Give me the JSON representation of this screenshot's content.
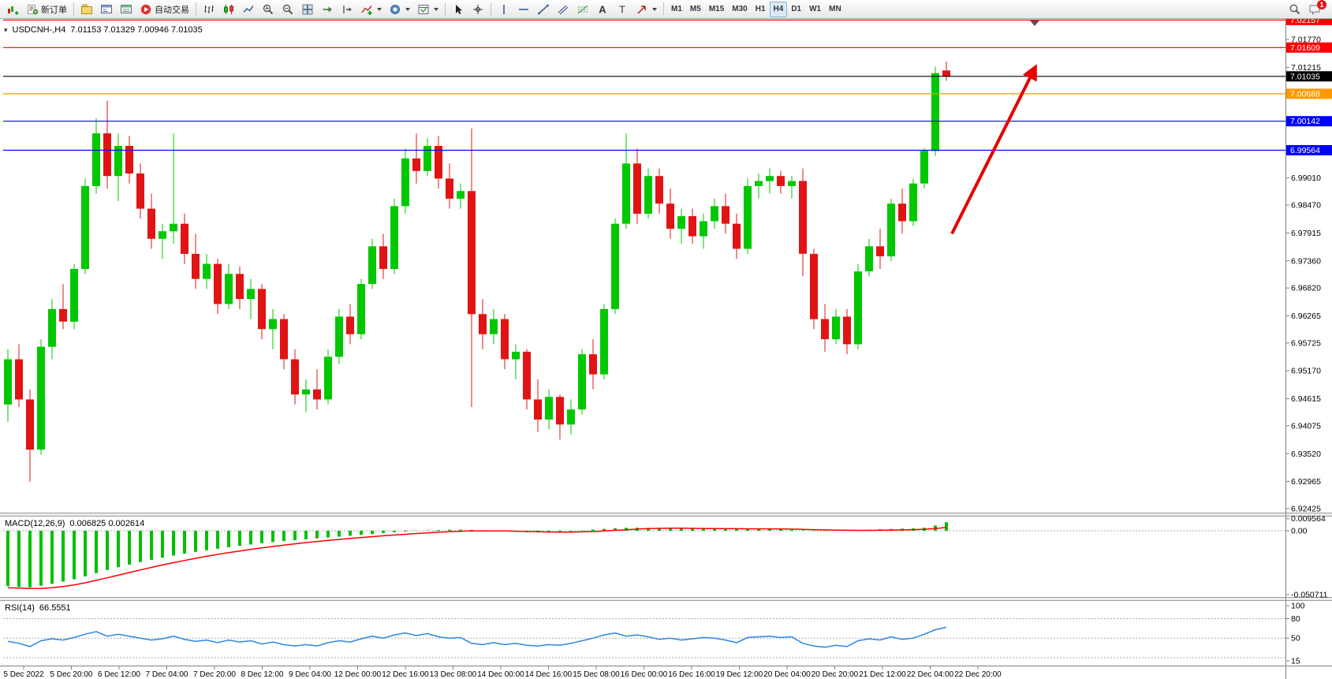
{
  "toolbar": {
    "new_order_label": "新订单",
    "autotrading_label": "自动交易",
    "timeframes": [
      "M1",
      "M5",
      "M15",
      "M30",
      "H1",
      "H4",
      "D1",
      "W1",
      "MN"
    ],
    "active_timeframe": "H4",
    "notification_badge": "1"
  },
  "chart": {
    "symbol_label": "USDCNH-,H4",
    "ohlc_label": "7.01153 7.01329 7.00946 7.01035"
  },
  "chart_data": {
    "type": "candlestick",
    "symbol": "USDCNH-",
    "timeframe": "H4",
    "current_ohlc": {
      "open": 7.01153,
      "high": 7.01329,
      "low": 7.00946,
      "close": 7.01035
    },
    "colors": {
      "up": "#00C800",
      "down": "#E01414"
    },
    "candles": [
      [
        6.945,
        6.956,
        6.9415,
        6.954
      ],
      [
        6.954,
        6.957,
        6.9445,
        6.946
      ],
      [
        6.946,
        6.948,
        6.9296,
        6.936
      ],
      [
        6.936,
        6.958,
        6.935,
        6.9565
      ],
      [
        6.9565,
        6.966,
        6.954,
        6.964
      ],
      [
        6.964,
        6.969,
        6.96,
        6.9615
      ],
      [
        6.9615,
        6.973,
        6.96,
        6.972
      ],
      [
        6.972,
        6.99,
        6.971,
        6.9885
      ],
      [
        6.9885,
        7.002,
        6.987,
        6.999
      ],
      [
        6.999,
        7.0055,
        6.988,
        6.9905
      ],
      [
        6.9905,
        6.999,
        6.9855,
        6.9965
      ],
      [
        6.9965,
        6.9985,
        6.989,
        6.991
      ],
      [
        6.991,
        6.993,
        6.982,
        6.984
      ],
      [
        6.984,
        6.987,
        6.976,
        6.978
      ],
      [
        6.978,
        6.981,
        6.974,
        6.9795
      ],
      [
        6.9795,
        6.999,
        6.977,
        6.981
      ],
      [
        6.981,
        6.983,
        6.973,
        6.975
      ],
      [
        6.975,
        6.979,
        6.968,
        6.97
      ],
      [
        6.97,
        6.975,
        6.968,
        6.973
      ],
      [
        6.973,
        6.974,
        6.963,
        6.965
      ],
      [
        6.965,
        6.973,
        6.964,
        6.971
      ],
      [
        6.971,
        6.9725,
        6.964,
        6.966
      ],
      [
        6.966,
        6.97,
        6.962,
        6.968
      ],
      [
        6.968,
        6.969,
        6.958,
        6.96
      ],
      [
        6.96,
        6.964,
        6.956,
        6.962
      ],
      [
        6.962,
        6.963,
        6.952,
        6.954
      ],
      [
        6.954,
        6.956,
        6.945,
        6.947
      ],
      [
        6.947,
        6.95,
        6.9435,
        6.948
      ],
      [
        6.948,
        6.952,
        6.944,
        6.946
      ],
      [
        6.946,
        6.956,
        6.945,
        6.9545
      ],
      [
        6.9545,
        6.964,
        6.953,
        6.9625
      ],
      [
        6.9625,
        6.965,
        6.957,
        6.959
      ],
      [
        6.959,
        6.97,
        6.958,
        6.969
      ],
      [
        6.969,
        6.978,
        6.968,
        6.9765
      ],
      [
        6.9765,
        6.979,
        6.97,
        6.972
      ],
      [
        6.972,
        6.986,
        6.971,
        6.9845
      ],
      [
        6.9845,
        6.996,
        6.983,
        6.994
      ],
      [
        6.994,
        6.999,
        6.989,
        6.9915
      ],
      [
        6.9915,
        6.998,
        6.9905,
        6.9965
      ],
      [
        6.9965,
        6.9985,
        6.988,
        6.99
      ],
      [
        6.99,
        6.993,
        6.984,
        6.986
      ],
      [
        6.986,
        6.989,
        6.984,
        6.9875
      ],
      [
        6.9875,
        7.0,
        6.9445,
        6.963
      ],
      [
        6.963,
        6.966,
        6.956,
        6.959
      ],
      [
        6.959,
        6.964,
        6.957,
        6.962
      ],
      [
        6.962,
        6.963,
        6.952,
        6.954
      ],
      [
        6.954,
        6.957,
        6.95,
        6.9555
      ],
      [
        6.9555,
        6.956,
        6.944,
        6.946
      ],
      [
        6.946,
        6.95,
        6.9395,
        6.942
      ],
      [
        6.942,
        6.948,
        6.94,
        6.9465
      ],
      [
        6.9465,
        6.947,
        6.938,
        6.941
      ],
      [
        6.941,
        6.946,
        6.939,
        6.944
      ],
      [
        6.944,
        6.956,
        6.943,
        6.955
      ],
      [
        6.955,
        6.958,
        6.948,
        6.951
      ],
      [
        6.951,
        6.965,
        6.95,
        6.964
      ],
      [
        6.964,
        6.982,
        6.963,
        6.981
      ],
      [
        6.981,
        6.999,
        6.98,
        6.993
      ],
      [
        6.993,
        6.996,
        6.981,
        6.983
      ],
      [
        6.983,
        6.992,
        6.982,
        6.9905
      ],
      [
        6.9905,
        6.992,
        6.983,
        6.985
      ],
      [
        6.985,
        6.988,
        6.978,
        6.98
      ],
      [
        6.98,
        6.984,
        6.977,
        6.9825
      ],
      [
        6.9825,
        6.984,
        6.977,
        6.9785
      ],
      [
        6.9785,
        6.983,
        6.976,
        6.9815
      ],
      [
        6.9815,
        6.986,
        6.98,
        6.9845
      ],
      [
        6.9845,
        6.987,
        6.979,
        6.981
      ],
      [
        6.981,
        6.983,
        6.974,
        6.976
      ],
      [
        6.976,
        6.99,
        6.975,
        6.9885
      ],
      [
        6.9885,
        6.991,
        6.986,
        6.9895
      ],
      [
        6.9895,
        6.992,
        6.987,
        6.9905
      ],
      [
        6.9905,
        6.9915,
        6.987,
        6.9885
      ],
      [
        6.9885,
        6.9905,
        6.986,
        6.9895
      ],
      [
        6.9895,
        6.992,
        6.9705,
        6.975
      ],
      [
        6.975,
        6.976,
        6.96,
        6.962
      ],
      [
        6.962,
        6.965,
        6.9555,
        6.958
      ],
      [
        6.958,
        6.964,
        6.957,
        6.9625
      ],
      [
        6.9625,
        6.964,
        6.955,
        6.957
      ],
      [
        6.957,
        6.973,
        6.956,
        6.9715
      ],
      [
        6.9715,
        6.978,
        6.9705,
        6.9765
      ],
      [
        6.9765,
        6.98,
        6.972,
        6.9745
      ],
      [
        6.9745,
        6.986,
        6.9735,
        6.985
      ],
      [
        6.985,
        6.988,
        6.979,
        6.9815
      ],
      [
        6.9815,
        6.99,
        6.9805,
        6.989
      ],
      [
        6.989,
        6.996,
        6.988,
        6.9955
      ],
      [
        6.9955,
        7.0123,
        6.9945,
        7.011
      ],
      [
        7.01153,
        7.01329,
        7.00946,
        7.01035
      ]
    ],
    "hlines": [
      {
        "price": 7.02157,
        "color": "#FF0000",
        "label": "7.02157",
        "current": false
      },
      {
        "price": 7.01609,
        "color": "#FF0000",
        "label": "7.01609",
        "current": false
      },
      {
        "price": 7.01035,
        "color": "#000000",
        "label": "7.01035",
        "current": true
      },
      {
        "price": 7.00688,
        "color": "#FF9900",
        "label": "7.00688",
        "current": false
      },
      {
        "price": 7.00142,
        "color": "#0000FF",
        "label": "7.00142",
        "current": false
      },
      {
        "price": 6.99564,
        "color": "#0000FF",
        "label": "6.99564",
        "current": false
      }
    ],
    "y_labels": [
      "7.01770",
      "7.01215",
      "6.99010",
      "6.98470",
      "6.97915",
      "6.97360",
      "6.96820",
      "6.96265",
      "6.95725",
      "6.95170",
      "6.94615",
      "6.94075",
      "6.93520",
      "6.92965",
      "6.92425"
    ],
    "x_labels": [
      "5 Dec 2022",
      "5 Dec 20:00",
      "6 Dec 12:00",
      "7 Dec 04:00",
      "7 Dec 20:00",
      "8 Dec 12:00",
      "9 Dec 04:00",
      "12 Dec 00:00",
      "12 Dec 16:00",
      "13 Dec 08:00",
      "14 Dec 00:00",
      "14 Dec 16:00",
      "15 Dec 08:00",
      "16 Dec 00:00",
      "16 Dec 16:00",
      "19 Dec 12:00",
      "20 Dec 04:00",
      "20 Dec 20:00",
      "21 Dec 12:00",
      "22 Dec 04:00",
      "22 Dec 20:00"
    ],
    "arrow": {
      "color": "#E60000",
      "from_bar": 85.5,
      "from_price": 6.979,
      "to_bar": 93.2,
      "to_price": 7.0128
    },
    "shift_marker_bar": 93,
    "macd": {
      "name": "MACD(12,26,9)",
      "values_label": "0.006825 0.002614",
      "main_value": 0.006825,
      "signal_value": 0.002614,
      "histogram_color": "#00C000",
      "signal_color": "#FF0000",
      "scale": [
        {
          "label": "0.009564",
          "value": 0.009564
        },
        {
          "label": "0.00",
          "value": 0
        },
        {
          "label": "-0.050711",
          "value": -0.050711
        }
      ],
      "histogram": [
        -0.044,
        -0.0447,
        -0.0449,
        -0.0437,
        -0.0421,
        -0.0404,
        -0.0385,
        -0.0362,
        -0.0336,
        -0.0312,
        -0.029,
        -0.0269,
        -0.0249,
        -0.0231,
        -0.0214,
        -0.0197,
        -0.0182,
        -0.0168,
        -0.0155,
        -0.0143,
        -0.0131,
        -0.012,
        -0.0109,
        -0.0099,
        -0.009,
        -0.0082,
        -0.0075,
        -0.0068,
        -0.0061,
        -0.0054,
        -0.0047,
        -0.004,
        -0.0033,
        -0.0026,
        -0.0019,
        -0.0012,
        -0.0006,
        -0.0001,
        0.0003,
        0.0006,
        0.0008,
        0.0009,
        0.0007,
        0.0004,
        0.0,
        -0.0004,
        -0.0008,
        -0.0011,
        -0.0013,
        -0.0013,
        -0.001,
        -0.0005,
        0.0002,
        0.0009,
        0.0015,
        0.002,
        0.0023,
        0.0024,
        0.0023,
        0.0021,
        0.0019,
        0.0017,
        0.0016,
        0.0015,
        0.0015,
        0.0015,
        0.0016,
        0.0016,
        0.0015,
        0.0013,
        0.001,
        0.0007,
        0.0004,
        0.0002,
        0.0001,
        0.0002,
        0.0004,
        0.0006,
        0.0009,
        0.0012,
        0.0014,
        0.0016,
        0.0019,
        0.0024,
        0.0042,
        0.0068
      ],
      "signal": [
        -0.0452,
        -0.0456,
        -0.0459,
        -0.0458,
        -0.0452,
        -0.0443,
        -0.043,
        -0.0413,
        -0.0394,
        -0.0374,
        -0.0353,
        -0.0332,
        -0.0311,
        -0.0291,
        -0.0272,
        -0.0253,
        -0.0236,
        -0.0219,
        -0.0203,
        -0.0188,
        -0.0174,
        -0.0161,
        -0.0148,
        -0.0136,
        -0.0125,
        -0.0114,
        -0.0104,
        -0.0094,
        -0.0085,
        -0.0077,
        -0.0069,
        -0.0061,
        -0.0054,
        -0.0047,
        -0.004,
        -0.0034,
        -0.0028,
        -0.0022,
        -0.0017,
        -0.0012,
        -0.0008,
        -0.0004,
        -0.0002,
        -0.0001,
        -0.0001,
        -0.0002,
        -0.0004,
        -0.0006,
        -0.0008,
        -0.001,
        -0.0011,
        -0.0011,
        -0.0009,
        -0.0006,
        -0.0002,
        0.0003,
        0.0008,
        0.0013,
        0.0017,
        0.0019,
        0.002,
        0.002,
        0.0019,
        0.0018,
        0.0017,
        0.0016,
        0.0016,
        0.0015,
        0.0015,
        0.0015,
        0.0014,
        0.0013,
        0.0011,
        0.0009,
        0.0007,
        0.0005,
        0.0004,
        0.0003,
        0.0003,
        0.0004,
        0.0005,
        0.0007,
        0.0009,
        0.0012,
        0.0017,
        0.0026
      ]
    },
    "rsi": {
      "name": "RSI(14)",
      "value_label": "66.5551",
      "current_value": 66.5551,
      "line_color": "#2E86E0",
      "levels": [
        80,
        50,
        20
      ],
      "scale": [
        {
          "label": "100",
          "value": 100
        },
        {
          "label": "80",
          "value": 80
        },
        {
          "label": "50",
          "value": 50
        },
        {
          "label": "15",
          "value": 15
        }
      ],
      "values": [
        45,
        42,
        37,
        46,
        49,
        47,
        51,
        56,
        60,
        53,
        56,
        53,
        50,
        47,
        49,
        53,
        48,
        45,
        47,
        43,
        47,
        44,
        46,
        41,
        44,
        40,
        38,
        40,
        38,
        43,
        46,
        44,
        49,
        53,
        50,
        55,
        58,
        54,
        57,
        52,
        50,
        51,
        42,
        40,
        43,
        40,
        42,
        39,
        38,
        40,
        39,
        42,
        46,
        50,
        55,
        58,
        53,
        55,
        52,
        48,
        50,
        47,
        49,
        51,
        50,
        47,
        43,
        51,
        52,
        53,
        51,
        52,
        42,
        38,
        36,
        39,
        37,
        46,
        49,
        47,
        52,
        48,
        50,
        56,
        63,
        66.55
      ]
    }
  }
}
